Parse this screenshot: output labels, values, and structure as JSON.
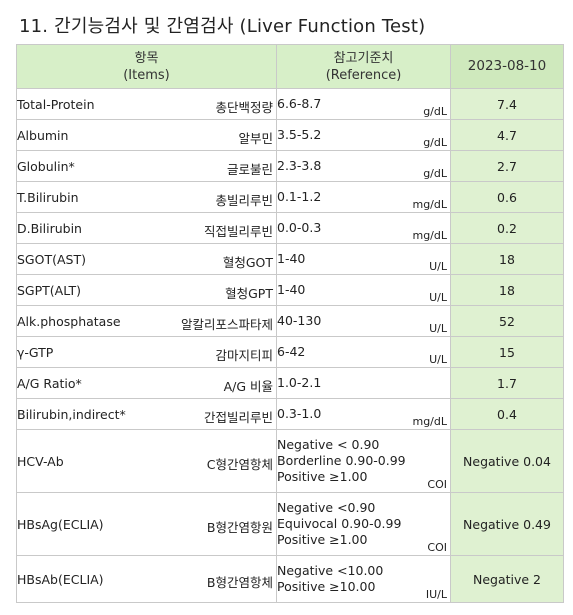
{
  "title": "11. 간기능검사 및 간염검사 (Liver Function Test)",
  "header": {
    "items_ko": "항목",
    "items_en": "(Items)",
    "ref_ko": "참고기준치",
    "ref_en": "(Reference)",
    "date": "2023-08-10"
  },
  "rows": [
    {
      "en": "Total-Protein",
      "ko": "총단백정량",
      "ref": [
        "6.6-8.7"
      ],
      "unit": "g/dL",
      "result": "7.4"
    },
    {
      "en": "Albumin",
      "ko": "알부민",
      "ref": [
        "3.5-5.2"
      ],
      "unit": "g/dL",
      "result": "4.7"
    },
    {
      "en": "Globulin*",
      "ko": "글로불린",
      "ref": [
        "2.3-3.8"
      ],
      "unit": "g/dL",
      "result": "2.7"
    },
    {
      "en": "T.Bilirubin",
      "ko": "총빌리루빈",
      "ref": [
        "0.1-1.2"
      ],
      "unit": "mg/dL",
      "result": "0.6"
    },
    {
      "en": "D.Bilirubin",
      "ko": "직접빌리루빈",
      "ref": [
        "0.0-0.3"
      ],
      "unit": "mg/dL",
      "result": "0.2"
    },
    {
      "en": "SGOT(AST)",
      "ko": "혈청GOT",
      "ref": [
        "1-40"
      ],
      "unit": "U/L",
      "result": "18"
    },
    {
      "en": "SGPT(ALT)",
      "ko": "혈청GPT",
      "ref": [
        "1-40"
      ],
      "unit": "U/L",
      "result": "18"
    },
    {
      "en": "Alk.phosphatase",
      "ko": "알칼리포스파타제",
      "ref": [
        "40-130"
      ],
      "unit": "U/L",
      "result": "52"
    },
    {
      "en": "γ-GTP",
      "ko": "감마지티피",
      "ref": [
        "6-42"
      ],
      "unit": "U/L",
      "result": "15"
    },
    {
      "en": "A/G Ratio*",
      "ko": "A/G 비율",
      "ref": [
        "1.0-2.1"
      ],
      "unit": "",
      "result": "1.7"
    },
    {
      "en": "Bilirubin,indirect*",
      "ko": "간접빌리루빈",
      "ref": [
        "0.3-1.0"
      ],
      "unit": "mg/dL",
      "result": "0.4"
    },
    {
      "en": "HCV-Ab",
      "ko": "C형간염항체",
      "ref": [
        "Negative < 0.90",
        "Borderline 0.90-0.99",
        "Positive ≥1.00"
      ],
      "unit": "COI",
      "result": "Negative 0.04"
    },
    {
      "en": "HBsAg(ECLIA)",
      "ko": "B형간염항원",
      "ref": [
        "Negative  <0.90",
        "Equivocal 0.90-0.99",
        "Positive  ≥1.00"
      ],
      "unit": "COI",
      "result": "Negative 0.49"
    },
    {
      "en": "HBsAb(ECLIA)",
      "ko": "B형간염항체",
      "ref": [
        "Negative <10.00",
        "Positive ≥10.00"
      ],
      "unit": "IU/L",
      "result": "Negative 2"
    }
  ]
}
